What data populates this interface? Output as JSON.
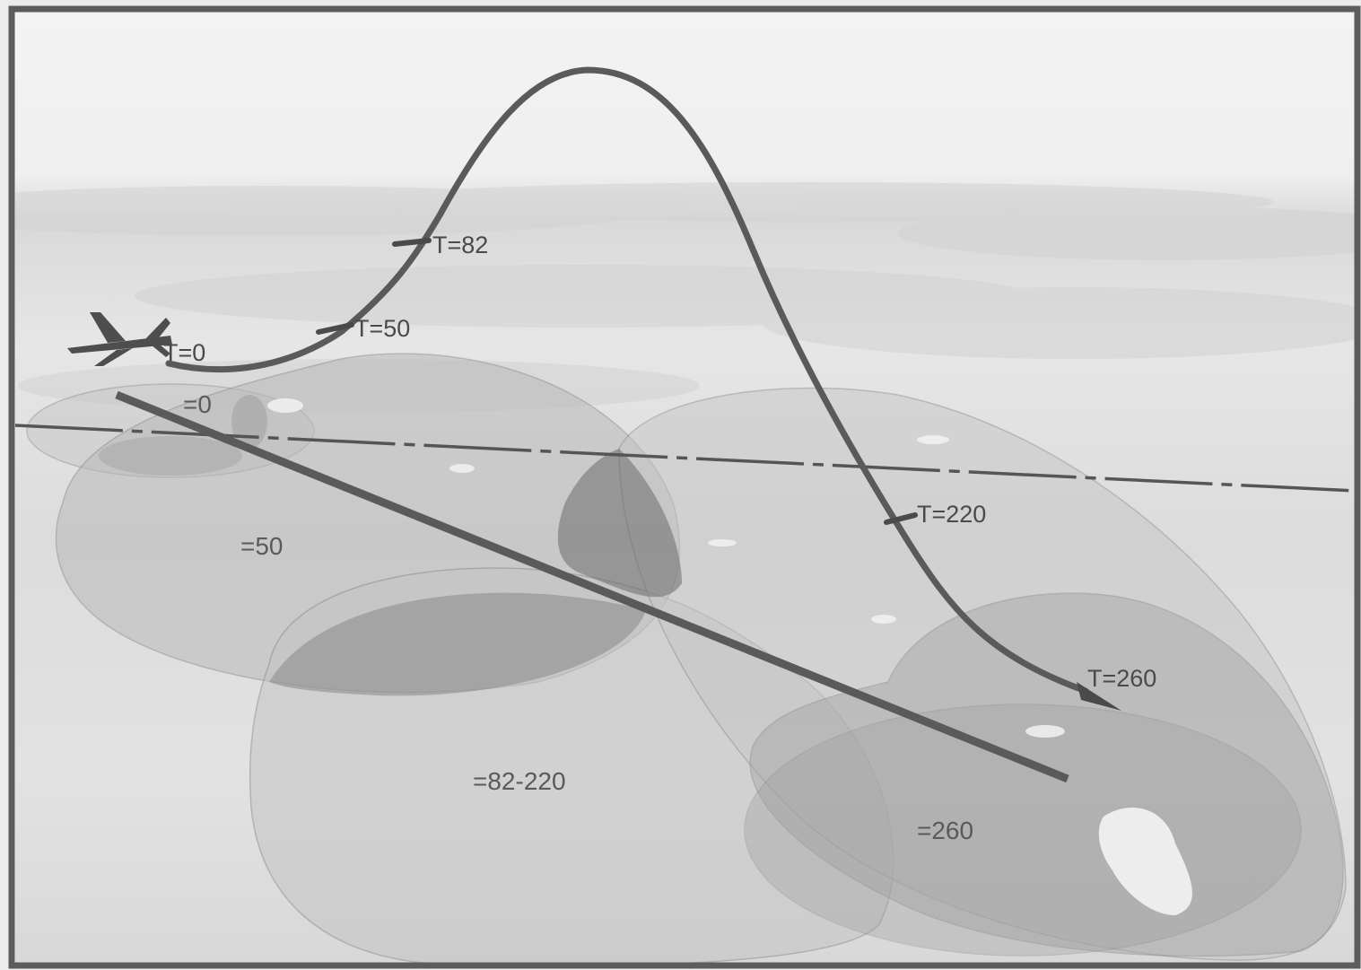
{
  "trajectory_labels": {
    "t0": "T=0",
    "t50": "T=50",
    "t82": "T=82",
    "t220": "T=220",
    "t260": "T=260"
  },
  "zone_labels": {
    "z0": "=0",
    "z50": "=50",
    "z82_220": "=82-220",
    "z260": "=260"
  },
  "colors": {
    "frame": "#5c5c5c",
    "trajectory": "#595959",
    "ground_track": "#5a5a5a",
    "sky": "#f0f0f0",
    "haze": "#dedede",
    "zone_fill": "#8a8a8a",
    "zone_overlap": "#6e6e6e"
  },
  "icons": {
    "aircraft": "aircraft-icon"
  }
}
